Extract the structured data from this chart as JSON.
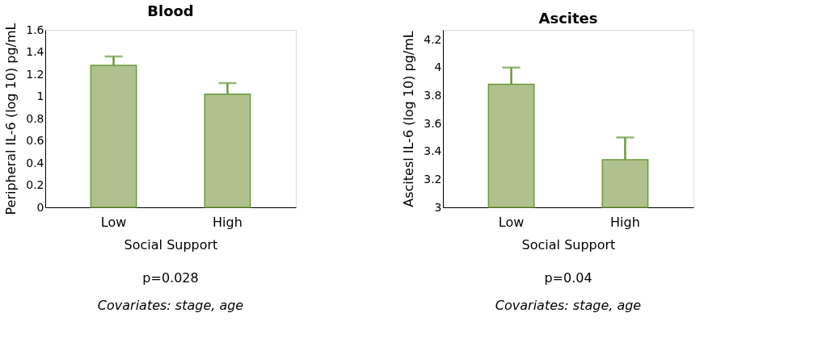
{
  "chart_data": [
    {
      "type": "bar",
      "title": "Blood",
      "xlabel": "Social Support",
      "ylabel": "Peripheral IL-6 (log 10) pg/mL",
      "categories": [
        "Low",
        "High"
      ],
      "values": [
        1.28,
        1.02
      ],
      "errors": [
        [
          1.28,
          1.36
        ],
        [
          1.02,
          1.12
        ]
      ],
      "color": "#b0c18f",
      "ylim": [
        0,
        1.6
      ],
      "yticks": [
        0,
        0.2,
        0.4,
        0.6,
        0.8,
        1,
        1.2,
        1.4,
        1.6
      ],
      "grid": false,
      "annotations": [
        "p=0.028",
        "Covariates: stage, age"
      ]
    },
    {
      "type": "bar",
      "title": "Ascites",
      "xlabel": "Social Support",
      "ylabel": "Ascitesl IL-6 (log 10) pg/mL",
      "categories": [
        "Low",
        "High"
      ],
      "values": [
        3.88,
        3.34
      ],
      "errors": [
        [
          3.88,
          4.0
        ],
        [
          3.34,
          3.5
        ]
      ],
      "color": "#b0c18f",
      "ylim": [
        3,
        4.27
      ],
      "yticks": [
        3,
        3.2,
        3.4,
        3.6,
        3.8,
        4,
        4.2
      ],
      "grid": false,
      "annotations": [
        "p=0.04",
        "Covariates: stage, age"
      ]
    }
  ]
}
